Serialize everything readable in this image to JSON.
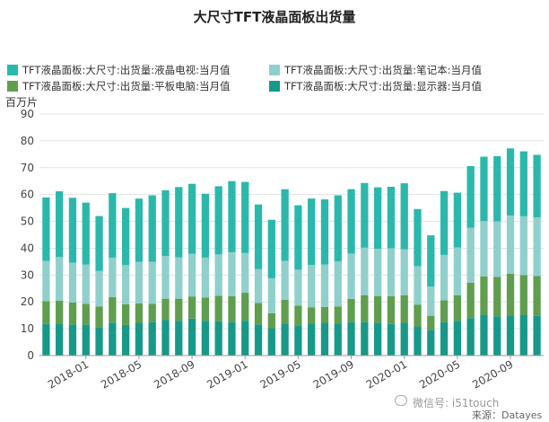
{
  "chart_data": {
    "type": "bar",
    "stacked": true,
    "title": "大尺寸TFT液晶面板出货量",
    "ylabel": "百万片",
    "ylim": [
      0,
      90
    ],
    "yticks": [
      0,
      10,
      20,
      30,
      40,
      50,
      60,
      70,
      80,
      90
    ],
    "grid": true,
    "legend_position": "top",
    "x_tick_labels": [
      "2018-01",
      "2018-05",
      "2018-09",
      "2019-01",
      "2019-05",
      "2019-09",
      "2020-01",
      "2020-05",
      "2020-09"
    ],
    "categories": [
      "2017-10",
      "2017-11",
      "2017-12",
      "2018-01",
      "2018-02",
      "2018-03",
      "2018-04",
      "2018-05",
      "2018-06",
      "2018-07",
      "2018-08",
      "2018-09",
      "2018-10",
      "2018-11",
      "2018-12",
      "2019-01",
      "2019-02",
      "2019-03",
      "2019-04",
      "2019-05",
      "2019-06",
      "2019-07",
      "2019-08",
      "2019-09",
      "2019-10",
      "2019-11",
      "2019-12",
      "2020-01",
      "2020-02",
      "2020-03",
      "2020-04",
      "2020-05",
      "2020-06",
      "2020-07",
      "2020-08",
      "2020-09",
      "2020-10",
      "2020-11"
    ],
    "series": [
      {
        "name": "TFT液晶面板:大尺寸:出货量:显示器:当月值",
        "color": "#17998a",
        "values": [
          11.8,
          11.7,
          11.6,
          11.5,
          10.5,
          12.3,
          11.4,
          12.2,
          12.5,
          13.2,
          13.0,
          13.8,
          13.0,
          12.8,
          12.5,
          13.0,
          11.6,
          10.2,
          12.0,
          11.3,
          11.9,
          12.2,
          11.9,
          12.4,
          12.5,
          12.3,
          11.8,
          12.2,
          10.7,
          9.6,
          12.5,
          13.0,
          14.0,
          15.2,
          14.6,
          15.0,
          15.2,
          14.8
        ]
      },
      {
        "name": "TFT液晶面板:大尺寸:出货量:平板电脑:当月值",
        "color": "#5f9e4e",
        "values": [
          8.5,
          8.7,
          8.2,
          7.8,
          7.8,
          9.5,
          7.7,
          7.2,
          6.8,
          8.0,
          8.2,
          8.2,
          8.6,
          9.5,
          9.6,
          10.4,
          8.0,
          5.6,
          8.8,
          7.3,
          6.1,
          5.9,
          6.4,
          8.7,
          10.0,
          9.9,
          10.3,
          10.3,
          8.3,
          5.2,
          8.1,
          9.5,
          13.1,
          14.3,
          14.7,
          15.5,
          14.8,
          14.8
        ]
      },
      {
        "name": "TFT液晶面板:大尺寸:出货量:笔记本:当月值",
        "color": "#8fd0cc",
        "values": [
          15.0,
          16.3,
          14.8,
          14.6,
          13.2,
          14.7,
          14.6,
          15.5,
          15.6,
          15.9,
          15.4,
          15.9,
          14.9,
          15.4,
          16.4,
          14.8,
          12.6,
          13.0,
          14.5,
          13.4,
          15.8,
          15.8,
          16.8,
          16.9,
          17.7,
          17.6,
          17.9,
          17.1,
          14.3,
          10.9,
          16.9,
          17.8,
          20.5,
          20.6,
          20.7,
          21.7,
          21.9,
          21.9
        ]
      },
      {
        "name": "TFT液晶面板:大尺寸:出货量:液晶电视:当月值",
        "color": "#2bb8ac",
        "values": [
          23.6,
          24.5,
          24.2,
          23.1,
          20.5,
          24.0,
          21.3,
          23.6,
          24.8,
          24.5,
          26.2,
          26.1,
          23.8,
          25.4,
          26.5,
          26.5,
          24.1,
          21.8,
          26.7,
          24.0,
          24.7,
          24.3,
          24.6,
          24.0,
          24.1,
          22.9,
          22.9,
          24.6,
          21.3,
          19.1,
          23.8,
          20.4,
          23.0,
          24.0,
          24.3,
          25.0,
          24.2,
          23.3
        ]
      }
    ]
  },
  "legend": {
    "items": [
      {
        "label": "TFT液晶面板:大尺寸:出货量:液晶电视:当月值",
        "color": "#2bb8ac"
      },
      {
        "label": "TFT液晶面板:大尺寸:出货量:笔记本:当月值",
        "color": "#8fd0cc"
      },
      {
        "label": "TFT液晶面板:大尺寸:出货量:平板电脑:当月值",
        "color": "#5f9e4e"
      },
      {
        "label": "TFT液晶面板:大尺寸:出货量:显示器:当月值",
        "color": "#17998a"
      }
    ]
  },
  "watermark": "微信号: i51touch",
  "source": "来源：Datayes"
}
